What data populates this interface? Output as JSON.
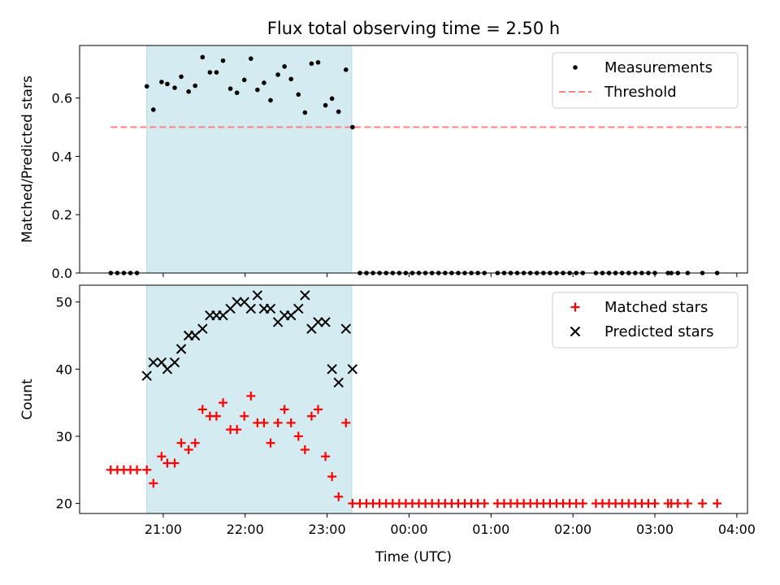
{
  "chart_data": {
    "title": "Flux total observing time = 2.50 h",
    "xlabel": "Time (UTC)",
    "x_ticks": [
      "21:00",
      "22:00",
      "23:00",
      "00:00",
      "01:00",
      "02:00",
      "03:00",
      "04:00"
    ],
    "x_tick_hours": [
      21,
      22,
      23,
      24,
      25,
      26,
      27,
      28
    ],
    "xlim_hours": [
      19.98,
      28.13
    ],
    "shaded_region_hours": [
      20.8,
      23.3
    ],
    "shade_color": "#d4ebf1",
    "panels": [
      {
        "type": "scatter",
        "ylabel": "Matched/Predicted stars",
        "ylim": [
          0,
          0.78
        ],
        "y_ticks": [
          0.0,
          0.2,
          0.4,
          0.6
        ],
        "y_tick_labels": [
          "0.0",
          "0.2",
          "0.4",
          "0.6"
        ],
        "legend": {
          "position": "top-right",
          "entries": [
            "Measurements",
            "Threshold"
          ]
        },
        "threshold": {
          "name": "Threshold",
          "value": 0.5,
          "x_range": [
            20.36,
            28.12
          ],
          "color": "#ff8080",
          "style": "dashed"
        },
        "series": [
          {
            "name": "Measurements",
            "marker": "dot",
            "color": "#000000",
            "points": [
              [
                20.36,
                0.0
              ],
              [
                20.44,
                0.0
              ],
              [
                20.52,
                0.0
              ],
              [
                20.6,
                0.0
              ],
              [
                20.68,
                0.0
              ],
              [
                20.8,
                0.64
              ],
              [
                20.88,
                0.56
              ],
              [
                20.98,
                0.655
              ],
              [
                21.05,
                0.648
              ],
              [
                21.14,
                0.635
              ],
              [
                21.22,
                0.673
              ],
              [
                21.31,
                0.622
              ],
              [
                21.39,
                0.642
              ],
              [
                21.48,
                0.74
              ],
              [
                21.57,
                0.688
              ],
              [
                21.65,
                0.688
              ],
              [
                21.73,
                0.728
              ],
              [
                21.82,
                0.632
              ],
              [
                21.9,
                0.618
              ],
              [
                21.99,
                0.662
              ],
              [
                22.07,
                0.735
              ],
              [
                22.15,
                0.628
              ],
              [
                22.23,
                0.652
              ],
              [
                22.31,
                0.592
              ],
              [
                22.4,
                0.68
              ],
              [
                22.48,
                0.708
              ],
              [
                22.56,
                0.665
              ],
              [
                22.65,
                0.612
              ],
              [
                22.73,
                0.55
              ],
              [
                22.81,
                0.718
              ],
              [
                22.89,
                0.722
              ],
              [
                22.98,
                0.575
              ],
              [
                23.06,
                0.598
              ],
              [
                23.14,
                0.553
              ],
              [
                23.23,
                0.697
              ],
              [
                23.31,
                0.5
              ],
              [
                23.4,
                0.0
              ],
              [
                23.48,
                0.0
              ],
              [
                23.56,
                0.0
              ],
              [
                23.64,
                0.0
              ],
              [
                23.72,
                0.0
              ],
              [
                23.8,
                0.0
              ],
              [
                23.88,
                0.0
              ],
              [
                23.96,
                0.0
              ],
              [
                24.04,
                0.0
              ],
              [
                24.12,
                0.0
              ],
              [
                24.2,
                0.0
              ],
              [
                24.28,
                0.0
              ],
              [
                24.36,
                0.0
              ],
              [
                24.44,
                0.0
              ],
              [
                24.52,
                0.0
              ],
              [
                24.6,
                0.0
              ],
              [
                24.68,
                0.0
              ],
              [
                24.76,
                0.0
              ],
              [
                24.84,
                0.0
              ],
              [
                24.92,
                0.0
              ],
              [
                25.08,
                0.0
              ],
              [
                25.16,
                0.0
              ],
              [
                25.24,
                0.0
              ],
              [
                25.32,
                0.0
              ],
              [
                25.4,
                0.0
              ],
              [
                25.48,
                0.0
              ],
              [
                25.56,
                0.0
              ],
              [
                25.64,
                0.0
              ],
              [
                25.72,
                0.0
              ],
              [
                25.8,
                0.0
              ],
              [
                25.88,
                0.0
              ],
              [
                25.96,
                0.0
              ],
              [
                26.04,
                0.0
              ],
              [
                26.12,
                0.0
              ],
              [
                26.28,
                0.0
              ],
              [
                26.36,
                0.0
              ],
              [
                26.44,
                0.0
              ],
              [
                26.52,
                0.0
              ],
              [
                26.6,
                0.0
              ],
              [
                26.68,
                0.0
              ],
              [
                26.76,
                0.0
              ],
              [
                26.84,
                0.0
              ],
              [
                26.92,
                0.0
              ],
              [
                27.0,
                0.0
              ],
              [
                27.16,
                0.0
              ],
              [
                27.2,
                0.0
              ],
              [
                27.28,
                0.0
              ],
              [
                27.4,
                0.0
              ],
              [
                27.58,
                0.0
              ],
              [
                27.76,
                0.0
              ]
            ]
          }
        ]
      },
      {
        "type": "scatter",
        "ylabel": "Count",
        "ylim": [
          18.5,
          52.5
        ],
        "y_ticks": [
          20,
          30,
          40,
          50
        ],
        "y_tick_labels": [
          "20",
          "30",
          "40",
          "50"
        ],
        "legend": {
          "position": "top-right",
          "entries": [
            "Matched stars",
            "Predicted stars"
          ]
        },
        "series": [
          {
            "name": "Matched stars",
            "marker": "plus",
            "color": "#ff0000",
            "points": [
              [
                20.36,
                25
              ],
              [
                20.44,
                25
              ],
              [
                20.52,
                25
              ],
              [
                20.6,
                25
              ],
              [
                20.68,
                25
              ],
              [
                20.8,
                25
              ],
              [
                20.88,
                23
              ],
              [
                20.98,
                27
              ],
              [
                21.05,
                26
              ],
              [
                21.14,
                26
              ],
              [
                21.22,
                29
              ],
              [
                21.31,
                28
              ],
              [
                21.39,
                29
              ],
              [
                21.48,
                34
              ],
              [
                21.57,
                33
              ],
              [
                21.65,
                33
              ],
              [
                21.73,
                35
              ],
              [
                21.82,
                31
              ],
              [
                21.9,
                31
              ],
              [
                21.99,
                33
              ],
              [
                22.07,
                36
              ],
              [
                22.15,
                32
              ],
              [
                22.23,
                32
              ],
              [
                22.31,
                29
              ],
              [
                22.4,
                32
              ],
              [
                22.48,
                34
              ],
              [
                22.56,
                32
              ],
              [
                22.65,
                30
              ],
              [
                22.73,
                28
              ],
              [
                22.81,
                33
              ],
              [
                22.89,
                34
              ],
              [
                22.98,
                27
              ],
              [
                23.06,
                24
              ],
              [
                23.14,
                21
              ],
              [
                23.23,
                32
              ],
              [
                23.31,
                20
              ],
              [
                23.4,
                20
              ],
              [
                23.48,
                20
              ],
              [
                23.56,
                20
              ],
              [
                23.64,
                20
              ],
              [
                23.72,
                20
              ],
              [
                23.8,
                20
              ],
              [
                23.88,
                20
              ],
              [
                23.96,
                20
              ],
              [
                24.04,
                20
              ],
              [
                24.12,
                20
              ],
              [
                24.2,
                20
              ],
              [
                24.28,
                20
              ],
              [
                24.36,
                20
              ],
              [
                24.44,
                20
              ],
              [
                24.52,
                20
              ],
              [
                24.6,
                20
              ],
              [
                24.68,
                20
              ],
              [
                24.76,
                20
              ],
              [
                24.84,
                20
              ],
              [
                24.92,
                20
              ],
              [
                25.08,
                20
              ],
              [
                25.16,
                20
              ],
              [
                25.24,
                20
              ],
              [
                25.32,
                20
              ],
              [
                25.4,
                20
              ],
              [
                25.48,
                20
              ],
              [
                25.56,
                20
              ],
              [
                25.64,
                20
              ],
              [
                25.72,
                20
              ],
              [
                25.8,
                20
              ],
              [
                25.88,
                20
              ],
              [
                25.96,
                20
              ],
              [
                26.04,
                20
              ],
              [
                26.12,
                20
              ],
              [
                26.28,
                20
              ],
              [
                26.36,
                20
              ],
              [
                26.44,
                20
              ],
              [
                26.52,
                20
              ],
              [
                26.6,
                20
              ],
              [
                26.68,
                20
              ],
              [
                26.76,
                20
              ],
              [
                26.84,
                20
              ],
              [
                26.92,
                20
              ],
              [
                27.0,
                20
              ],
              [
                27.16,
                20
              ],
              [
                27.2,
                20
              ],
              [
                27.28,
                20
              ],
              [
                27.4,
                20
              ],
              [
                27.58,
                20
              ],
              [
                27.76,
                20
              ]
            ]
          },
          {
            "name": "Predicted stars",
            "marker": "x",
            "color": "#000000",
            "points": [
              [
                20.8,
                39
              ],
              [
                20.88,
                41
              ],
              [
                20.98,
                41
              ],
              [
                21.05,
                40
              ],
              [
                21.14,
                41
              ],
              [
                21.22,
                43
              ],
              [
                21.31,
                45
              ],
              [
                21.39,
                45
              ],
              [
                21.48,
                46
              ],
              [
                21.57,
                48
              ],
              [
                21.65,
                48
              ],
              [
                21.73,
                48
              ],
              [
                21.82,
                49
              ],
              [
                21.9,
                50
              ],
              [
                21.99,
                50
              ],
              [
                22.07,
                49
              ],
              [
                22.15,
                51
              ],
              [
                22.23,
                49
              ],
              [
                22.31,
                49
              ],
              [
                22.4,
                47
              ],
              [
                22.48,
                48
              ],
              [
                22.56,
                48
              ],
              [
                22.65,
                49
              ],
              [
                22.73,
                51
              ],
              [
                22.81,
                46
              ],
              [
                22.89,
                47
              ],
              [
                22.98,
                47
              ],
              [
                23.06,
                40
              ],
              [
                23.14,
                38
              ],
              [
                23.23,
                46
              ],
              [
                23.31,
                40
              ]
            ]
          }
        ]
      }
    ]
  }
}
